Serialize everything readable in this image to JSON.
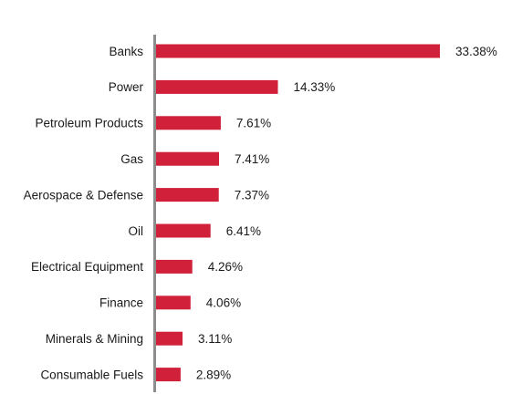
{
  "chart_data": {
    "type": "bar",
    "orientation": "horizontal",
    "categories": [
      "Banks",
      "Power",
      "Petroleum Products",
      "Gas",
      "Aerospace & Defense",
      "Oil",
      "Electrical Equipment",
      "Finance",
      "Minerals & Mining",
      "Consumable Fuels"
    ],
    "values": [
      33.38,
      14.33,
      7.61,
      7.41,
      7.37,
      6.41,
      4.26,
      4.06,
      3.11,
      2.89
    ],
    "value_labels": [
      "33.38%",
      "14.33%",
      "7.61%",
      "7.41%",
      "7.37%",
      "6.41%",
      "4.26%",
      "4.06%",
      "3.11%",
      "2.89%"
    ],
    "unit": "%",
    "title": "",
    "xlabel": "",
    "ylabel": "",
    "grid": false,
    "legend": "none",
    "colors": {
      "bar": "#d0203a",
      "axis": "#8c8c8c",
      "text": "#1a1a1a"
    }
  }
}
